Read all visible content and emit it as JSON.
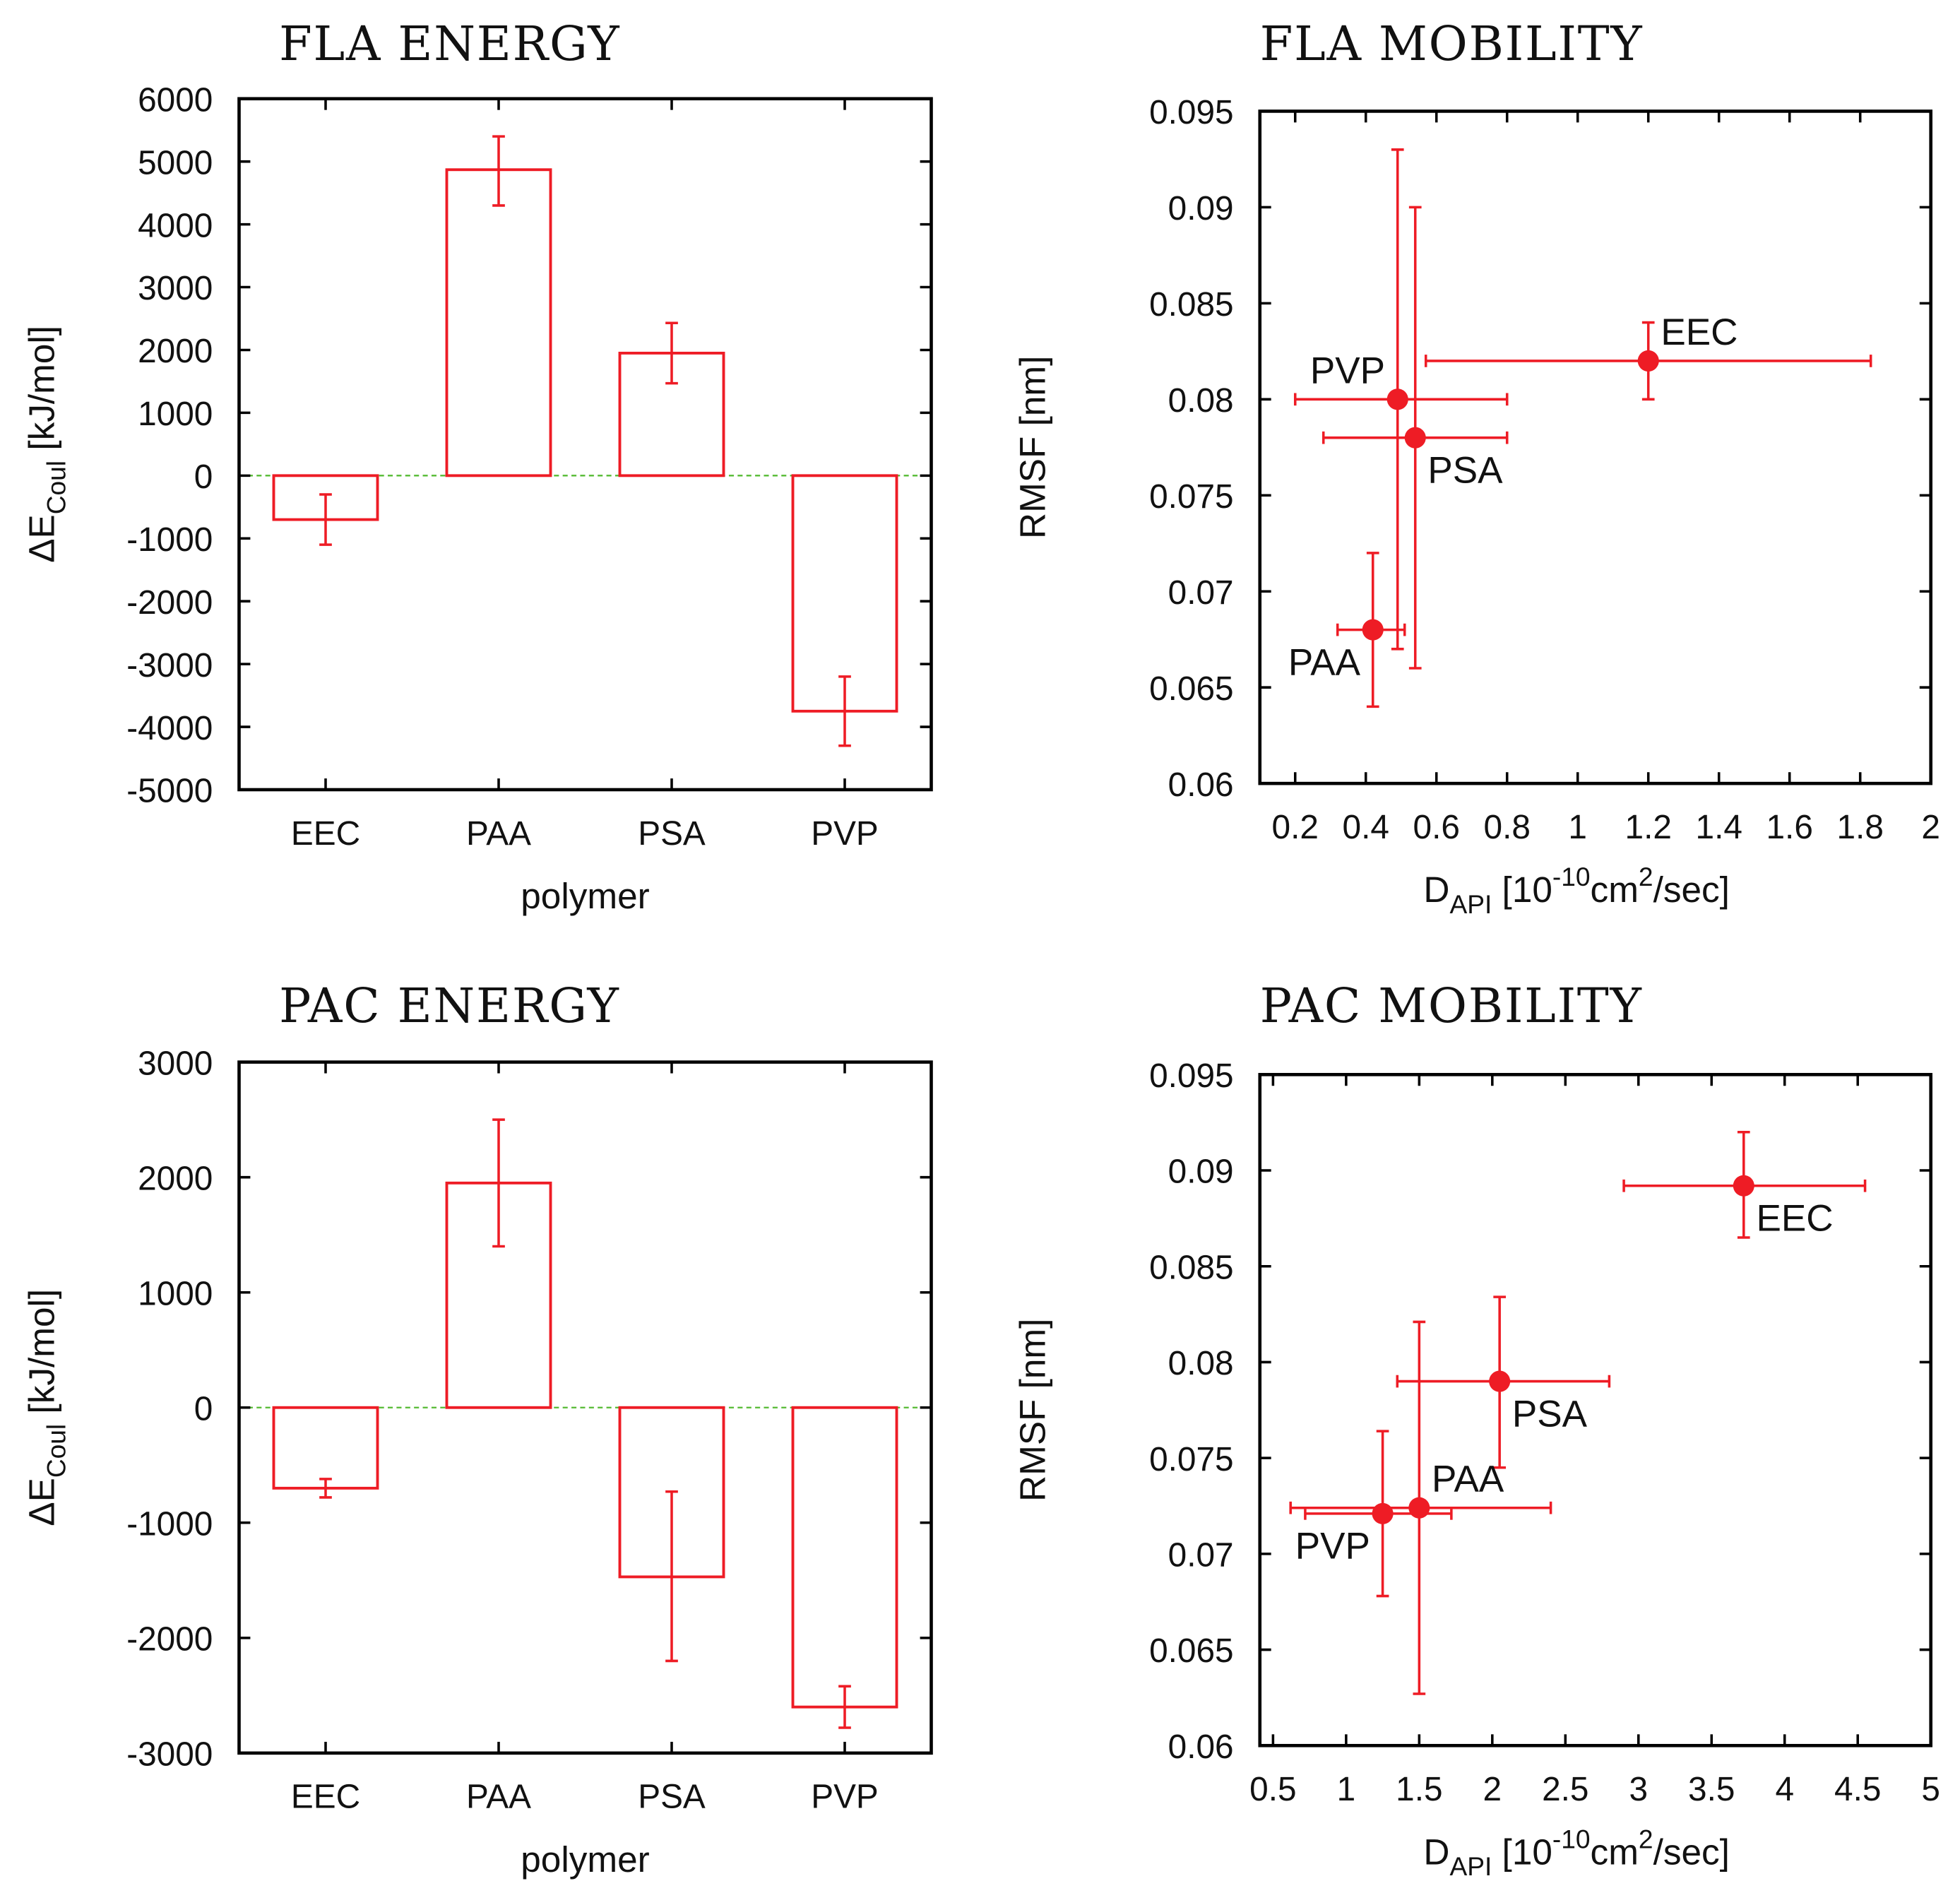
{
  "colors": {
    "series": "#ee1c25",
    "zero_line": "#55bb33",
    "frame": "#000000"
  },
  "chart_data": [
    {
      "type": "bar",
      "title": "FLA ENERGY",
      "xlabel": "polymer",
      "ylabel": {
        "main": "ΔE",
        "sub": "Coul",
        "rest": " [kJ/mol]"
      },
      "categories": [
        "EEC",
        "PAA",
        "PSA",
        "PVP"
      ],
      "values": [
        -700,
        4870,
        1950,
        -3750
      ],
      "err_low": [
        -1100,
        4300,
        1470,
        -4300
      ],
      "err_high": [
        -300,
        5400,
        2430,
        -3200
      ],
      "ylim": [
        -5000,
        6000
      ],
      "yticks": [
        -5000,
        -4000,
        -3000,
        -2000,
        -1000,
        0,
        1000,
        2000,
        3000,
        4000,
        5000,
        6000
      ],
      "ytick_labels": [
        "-5000",
        "-4000",
        "-3000",
        "-2000",
        "-1000",
        "0",
        "1000",
        "2000",
        "3000",
        "4000",
        "5000",
        "6000"
      ],
      "zero_line": "dashed"
    },
    {
      "type": "scatter",
      "title": "FLA MOBILITY",
      "xlabel": {
        "parts": [
          [
            "n",
            "D"
          ],
          [
            "sub",
            "API"
          ],
          [
            "n",
            " [10"
          ],
          [
            "sup",
            "-10"
          ],
          [
            "n",
            "cm"
          ],
          [
            "sup",
            "2"
          ],
          [
            "n",
            "/sec]"
          ]
        ]
      },
      "ylabel": "RMSF [nm]",
      "xlim": [
        0.1,
        2.0
      ],
      "ylim": [
        0.06,
        0.095
      ],
      "xticks": [
        0.2,
        0.4,
        0.6,
        0.8,
        1.0,
        1.2,
        1.4,
        1.6,
        1.8,
        2.0
      ],
      "xtick_labels": [
        "0.2",
        "0.4",
        "0.6",
        "0.8",
        "1",
        "1.2",
        "1.4",
        "1.6",
        "1.8",
        "2"
      ],
      "yticks": [
        0.06,
        0.065,
        0.07,
        0.075,
        0.08,
        0.085,
        0.09,
        0.095
      ],
      "ytick_labels": [
        "0.06",
        "0.065",
        "0.07",
        "0.075",
        "0.08",
        "0.085",
        "0.09",
        "0.095"
      ],
      "points": [
        {
          "label": "EEC",
          "x": 1.2,
          "y": 0.082,
          "xerr": [
            0.57,
            1.83
          ],
          "yerr": [
            0.08,
            0.084
          ],
          "label_pos": "above-right"
        },
        {
          "label": "PVP",
          "x": 0.49,
          "y": 0.08,
          "xerr": [
            0.2,
            0.8
          ],
          "yerr": [
            0.067,
            0.093
          ],
          "label_pos": "above-left"
        },
        {
          "label": "PSA",
          "x": 0.54,
          "y": 0.078,
          "xerr": [
            0.28,
            0.8
          ],
          "yerr": [
            0.066,
            0.09
          ],
          "label_pos": "below-right"
        },
        {
          "label": "PAA",
          "x": 0.42,
          "y": 0.068,
          "xerr": [
            0.32,
            0.51
          ],
          "yerr": [
            0.064,
            0.072
          ],
          "label_pos": "below-left"
        }
      ]
    },
    {
      "type": "bar",
      "title": "PAC ENERGY",
      "xlabel": "polymer",
      "ylabel": {
        "main": "ΔE",
        "sub": "Coul",
        "rest": " [kJ/mol]"
      },
      "categories": [
        "EEC",
        "PAA",
        "PSA",
        "PVP"
      ],
      "values": [
        -700,
        1950,
        -1470,
        -2600
      ],
      "err_low": [
        -780,
        1400,
        -2200,
        -2780
      ],
      "err_high": [
        -620,
        2500,
        -730,
        -2420
      ],
      "ylim": [
        -3000,
        3000
      ],
      "yticks": [
        -3000,
        -2000,
        -1000,
        0,
        1000,
        2000,
        3000
      ],
      "ytick_labels": [
        "-3000",
        "-2000",
        "-1000",
        "0",
        "1000",
        "2000",
        "3000"
      ],
      "zero_line": "dashed"
    },
    {
      "type": "scatter",
      "title": "PAC MOBILITY",
      "xlabel": {
        "parts": [
          [
            "n",
            "D"
          ],
          [
            "sub",
            "API"
          ],
          [
            "n",
            " [10"
          ],
          [
            "sup",
            "-10"
          ],
          [
            "n",
            "cm"
          ],
          [
            "sup",
            "2"
          ],
          [
            "n",
            "/sec]"
          ]
        ]
      },
      "ylabel": "RMSF [nm]",
      "xlim": [
        0.41,
        5.0
      ],
      "ylim": [
        0.06,
        0.095
      ],
      "xticks": [
        0.5,
        1.0,
        1.5,
        2.0,
        2.5,
        3.0,
        3.5,
        4.0,
        4.5,
        5.0
      ],
      "xtick_labels": [
        "0.5",
        "1",
        "1.5",
        "2",
        "2.5",
        "3",
        "3.5",
        "4",
        "4.5",
        "5"
      ],
      "yticks": [
        0.06,
        0.065,
        0.07,
        0.075,
        0.08,
        0.085,
        0.09,
        0.095
      ],
      "ytick_labels": [
        "0.06",
        "0.065",
        "0.07",
        "0.075",
        "0.08",
        "0.085",
        "0.09",
        "0.095"
      ],
      "points": [
        {
          "label": "EEC",
          "x": 3.72,
          "y": 0.0892,
          "xerr": [
            2.9,
            4.55
          ],
          "yerr": [
            0.0865,
            0.092
          ],
          "label_pos": "below-right"
        },
        {
          "label": "PSA",
          "x": 2.05,
          "y": 0.079,
          "xerr": [
            1.35,
            2.8
          ],
          "yerr": [
            0.0745,
            0.0834
          ],
          "label_pos": "below-right"
        },
        {
          "label": "PAA",
          "x": 1.5,
          "y": 0.0724,
          "xerr": [
            0.62,
            2.4
          ],
          "yerr": [
            0.0627,
            0.0821
          ],
          "label_pos": "above-right"
        },
        {
          "label": "PVP",
          "x": 1.25,
          "y": 0.0721,
          "xerr": [
            0.72,
            1.72
          ],
          "yerr": [
            0.0678,
            0.0764
          ],
          "label_pos": "below-left"
        }
      ]
    }
  ]
}
